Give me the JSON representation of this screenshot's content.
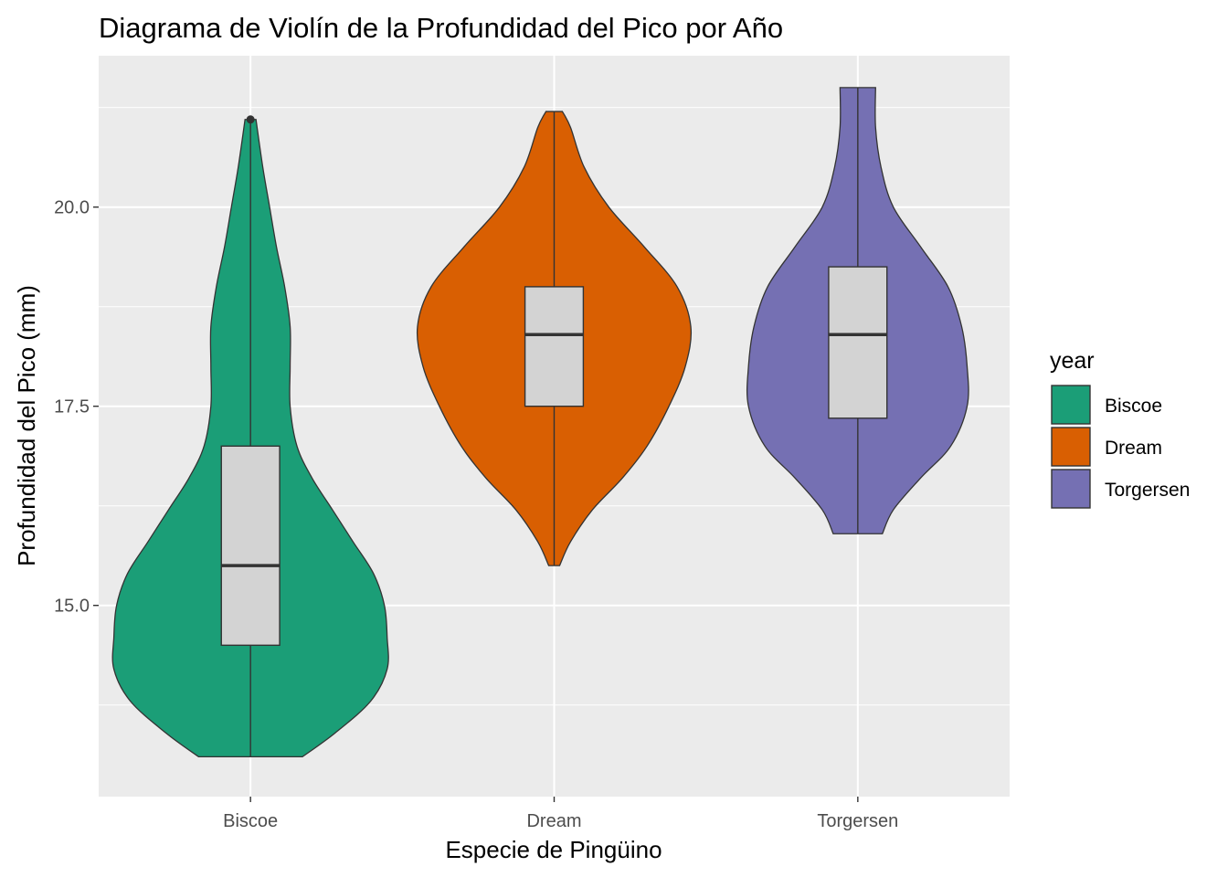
{
  "chart_data": {
    "type": "violin",
    "title": "Diagrama de Violín de la Profundidad del Pico por Año",
    "xlabel": "Especie de Pingüino",
    "ylabel": "Profundidad del Pico (mm)",
    "categories": [
      "Biscoe",
      "Dream",
      "Torgersen"
    ],
    "y_ticks": [
      "15.0",
      "17.5",
      "20.0"
    ],
    "ylim": [
      12.6,
      21.9
    ],
    "grid": true,
    "legend": {
      "title": "year",
      "position": "right",
      "entries": [
        "Biscoe",
        "Dream",
        "Torgersen"
      ]
    },
    "colors": {
      "Biscoe": "#1b9e77",
      "Dream": "#d95f02",
      "Torgersen": "#7570b3",
      "box_fill": "#d3d3d3",
      "panel": "#ebebeb"
    },
    "series": [
      {
        "name": "Biscoe",
        "min": 13.1,
        "q1": 14.5,
        "median": 15.5,
        "q3": 17.0,
        "max": 21.1,
        "outliers": [
          21.1
        ],
        "density": [
          [
            13.1,
            0.38
          ],
          [
            13.4,
            0.62
          ],
          [
            13.8,
            0.88
          ],
          [
            14.2,
            1.0
          ],
          [
            14.6,
            1.0
          ],
          [
            15.0,
            0.98
          ],
          [
            15.4,
            0.9
          ],
          [
            15.8,
            0.75
          ],
          [
            16.2,
            0.6
          ],
          [
            16.6,
            0.45
          ],
          [
            17.0,
            0.34
          ],
          [
            17.5,
            0.29
          ],
          [
            18.0,
            0.29
          ],
          [
            18.5,
            0.29
          ],
          [
            19.0,
            0.25
          ],
          [
            19.5,
            0.19
          ],
          [
            20.0,
            0.14
          ],
          [
            20.5,
            0.09
          ],
          [
            21.1,
            0.04
          ]
        ]
      },
      {
        "name": "Dream",
        "min": 15.5,
        "q1": 17.5,
        "median": 18.4,
        "q3": 19.0,
        "max": 21.2,
        "outliers": [],
        "density": [
          [
            15.5,
            0.04
          ],
          [
            15.8,
            0.12
          ],
          [
            16.2,
            0.28
          ],
          [
            16.6,
            0.5
          ],
          [
            17.0,
            0.68
          ],
          [
            17.5,
            0.84
          ],
          [
            18.0,
            0.96
          ],
          [
            18.5,
            1.0
          ],
          [
            19.0,
            0.9
          ],
          [
            19.5,
            0.66
          ],
          [
            20.0,
            0.4
          ],
          [
            20.5,
            0.22
          ],
          [
            21.0,
            0.12
          ],
          [
            21.2,
            0.06
          ]
        ]
      },
      {
        "name": "Torgersen",
        "min": 15.9,
        "q1": 17.35,
        "median": 18.4,
        "q3": 19.25,
        "max": 21.5,
        "outliers": [],
        "density": [
          [
            15.9,
            0.18
          ],
          [
            16.2,
            0.26
          ],
          [
            16.6,
            0.46
          ],
          [
            17.0,
            0.68
          ],
          [
            17.5,
            0.8
          ],
          [
            18.0,
            0.8
          ],
          [
            18.5,
            0.76
          ],
          [
            19.0,
            0.66
          ],
          [
            19.5,
            0.46
          ],
          [
            20.0,
            0.26
          ],
          [
            20.5,
            0.17
          ],
          [
            21.0,
            0.13
          ],
          [
            21.5,
            0.13
          ]
        ]
      }
    ]
  }
}
